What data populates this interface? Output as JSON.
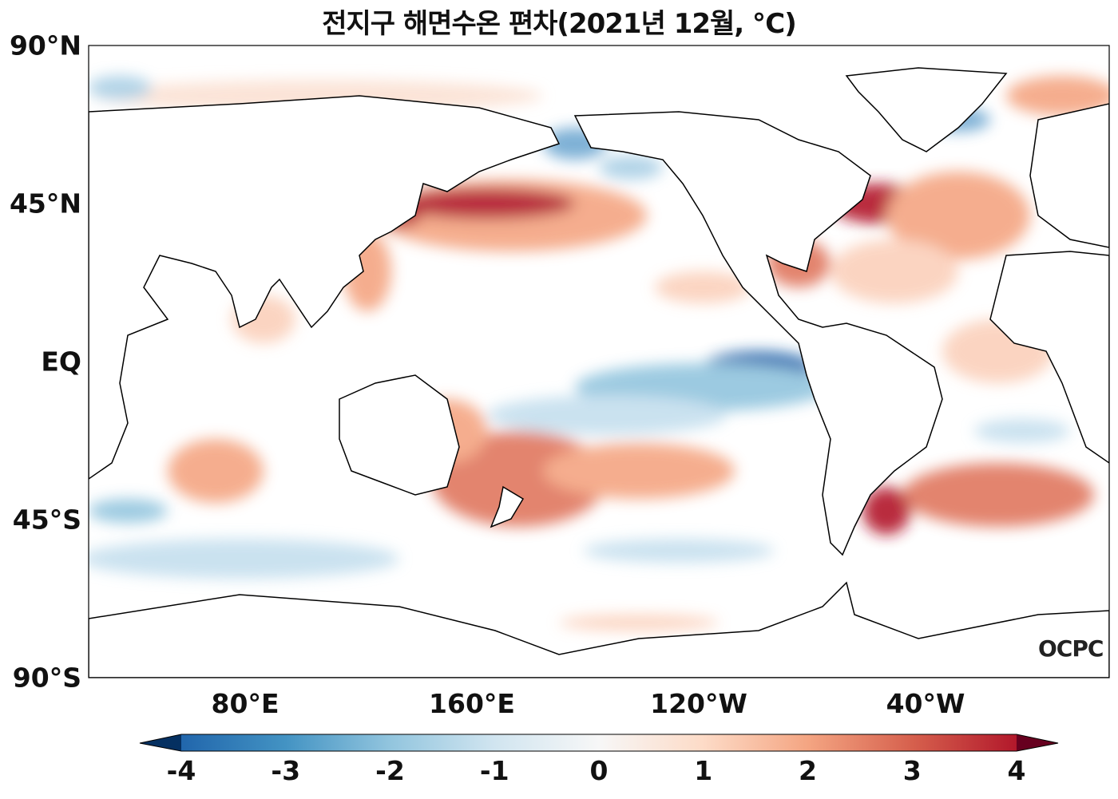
{
  "title": "전지구 해면수온 편차(2021년 12월, ℃)",
  "map": {
    "projection": "PlateCarree",
    "lon_range": [
      25,
      385
    ],
    "lat_range": [
      -90,
      90
    ],
    "lat_ticks": [
      "90°N",
      "45°N",
      "EQ",
      "45°S",
      "90°S"
    ],
    "lon_ticks": [
      "80°E",
      "160°E",
      "120°W",
      "40°W"
    ],
    "variable": "sea surface temperature anomaly",
    "units": "°C"
  },
  "colorbar": {
    "ticks": [
      "-4",
      "-3",
      "-2",
      "-1",
      "0",
      "1",
      "2",
      "3",
      "4"
    ],
    "range": [
      -4,
      4
    ],
    "extend": "both",
    "colormap": [
      "#053061",
      "#2166ac",
      "#4393c3",
      "#92c5de",
      "#d1e5f0",
      "#f7f7f7",
      "#fddbc7",
      "#f4a582",
      "#d6604d",
      "#b2182b",
      "#67001f"
    ]
  },
  "logo": "OCPC"
}
